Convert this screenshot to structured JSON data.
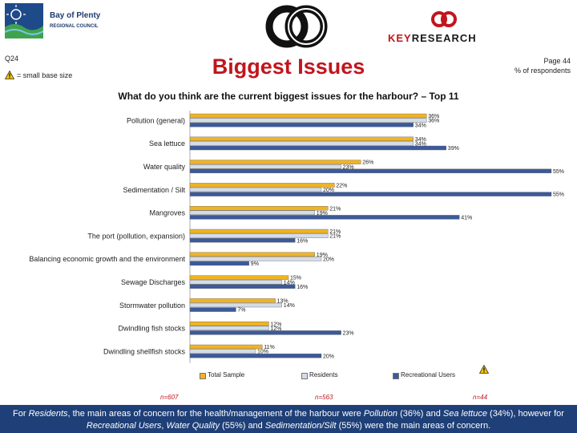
{
  "header": {
    "logo_left_line1": "Bay of Plenty",
    "logo_left_line2": "REGIONAL COUNCIL",
    "logo_right_part1": "KEY",
    "logo_right_part2": "RESEARCH",
    "question_code": "Q24",
    "note": "= small base size",
    "title": "Biggest Issues",
    "page": "Page 44",
    "unit": "% of respondents",
    "question": "What do you think are the current biggest issues for the harbour? – Top 11"
  },
  "colors": {
    "total": "#f0b323",
    "residents": "#d4dce8",
    "recreational": "#3b5a9a",
    "accent": "#c0161d",
    "footer_bg": "#1e3f77"
  },
  "chart_data": {
    "type": "bar",
    "orientation": "horizontal",
    "categories": [
      "Pollution (general)",
      "Sea lettuce",
      "Water quality",
      "Sedimentation / Silt",
      "Mangroves",
      "The port (pollution, expansion)",
      "Balancing economic growth and the environment",
      "Sewage Discharges",
      "Stormwater pollution",
      "Dwindling fish stocks",
      "Dwindling shellfish stocks"
    ],
    "series": [
      {
        "name": "Total Sample",
        "values": [
          36,
          34,
          26,
          22,
          21,
          21,
          19,
          15,
          13,
          12,
          11
        ]
      },
      {
        "name": "Residents",
        "values": [
          36,
          34,
          23,
          20,
          19,
          21,
          20,
          14,
          14,
          12,
          10
        ]
      },
      {
        "name": "Recreational Users",
        "values": [
          34,
          39,
          55,
          55,
          41,
          16,
          9,
          16,
          7,
          23,
          20
        ]
      }
    ],
    "xlim": [
      0,
      55
    ],
    "value_suffix": "%",
    "grid": false,
    "legend_position": "bottom"
  },
  "bases": [
    "n=607",
    "n=563",
    "n=44"
  ],
  "footer": {
    "t1": "For ",
    "t2": "Residents",
    "t3": ", the main areas of concern for the health/management  of the harbour were ",
    "t4": "Pollution",
    "t5": " (36%) and ",
    "t6": "Sea lettuce",
    "t7": " (34%), however for",
    "t8": "Recreational Users",
    "t9": ", ",
    "t10": "Water Quality",
    "t11": " (55%) and ",
    "t12": "Sedimentation/Silt",
    "t13": " (55%) were the main areas of concern."
  }
}
